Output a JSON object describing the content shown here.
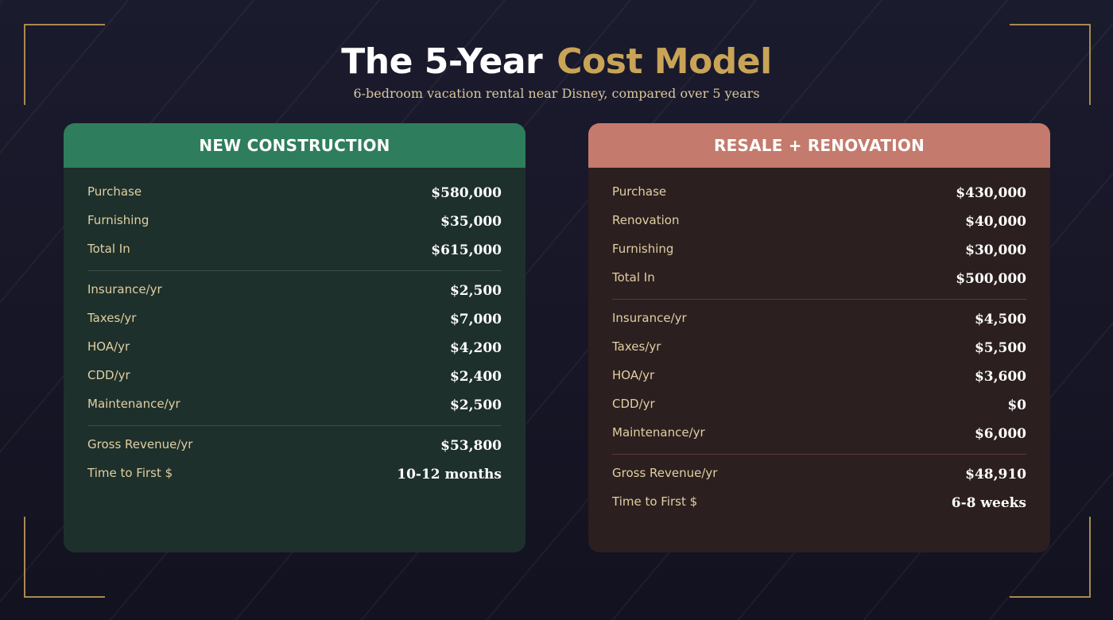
{
  "header": {
    "title_main": "The 5-Year",
    "title_accent": "Cost Model",
    "subtitle": "6-bedroom vacation rental near Disney, compared over 5 years"
  },
  "colors": {
    "gold": "#c9a457",
    "new_header": "#2e7d5c",
    "resale_header": "#c47a6c"
  },
  "new_construction": {
    "title": "NEW CONSTRUCTION",
    "upfront": [
      {
        "label": "Purchase",
        "value": "$580,000"
      },
      {
        "label": "Furnishing",
        "value": "$35,000"
      },
      {
        "label": "Total In",
        "value": "$615,000"
      }
    ],
    "annual": [
      {
        "label": "Insurance/yr",
        "value": "$2,500"
      },
      {
        "label": "Taxes/yr",
        "value": "$7,000"
      },
      {
        "label": "HOA/yr",
        "value": "$4,200"
      },
      {
        "label": "CDD/yr",
        "value": "$2,400"
      },
      {
        "label": "Maintenance/yr",
        "value": "$2,500"
      }
    ],
    "returns": [
      {
        "label": "Gross Revenue/yr",
        "value": "$53,800"
      },
      {
        "label": "Time to First $",
        "value": "10-12 months"
      }
    ]
  },
  "resale_renovation": {
    "title": "RESALE + RENOVATION",
    "upfront": [
      {
        "label": "Purchase",
        "value": "$430,000"
      },
      {
        "label": "Renovation",
        "value": "$40,000"
      },
      {
        "label": "Furnishing",
        "value": "$30,000"
      },
      {
        "label": "Total In",
        "value": "$500,000"
      }
    ],
    "annual": [
      {
        "label": "Insurance/yr",
        "value": "$4,500"
      },
      {
        "label": "Taxes/yr",
        "value": "$5,500"
      },
      {
        "label": "HOA/yr",
        "value": "$3,600"
      },
      {
        "label": "CDD/yr",
        "value": "$0"
      },
      {
        "label": "Maintenance/yr",
        "value": "$6,000"
      }
    ],
    "returns": [
      {
        "label": "Gross Revenue/yr",
        "value": "$48,910"
      },
      {
        "label": "Time to First $",
        "value": "6-8 weeks"
      }
    ]
  }
}
